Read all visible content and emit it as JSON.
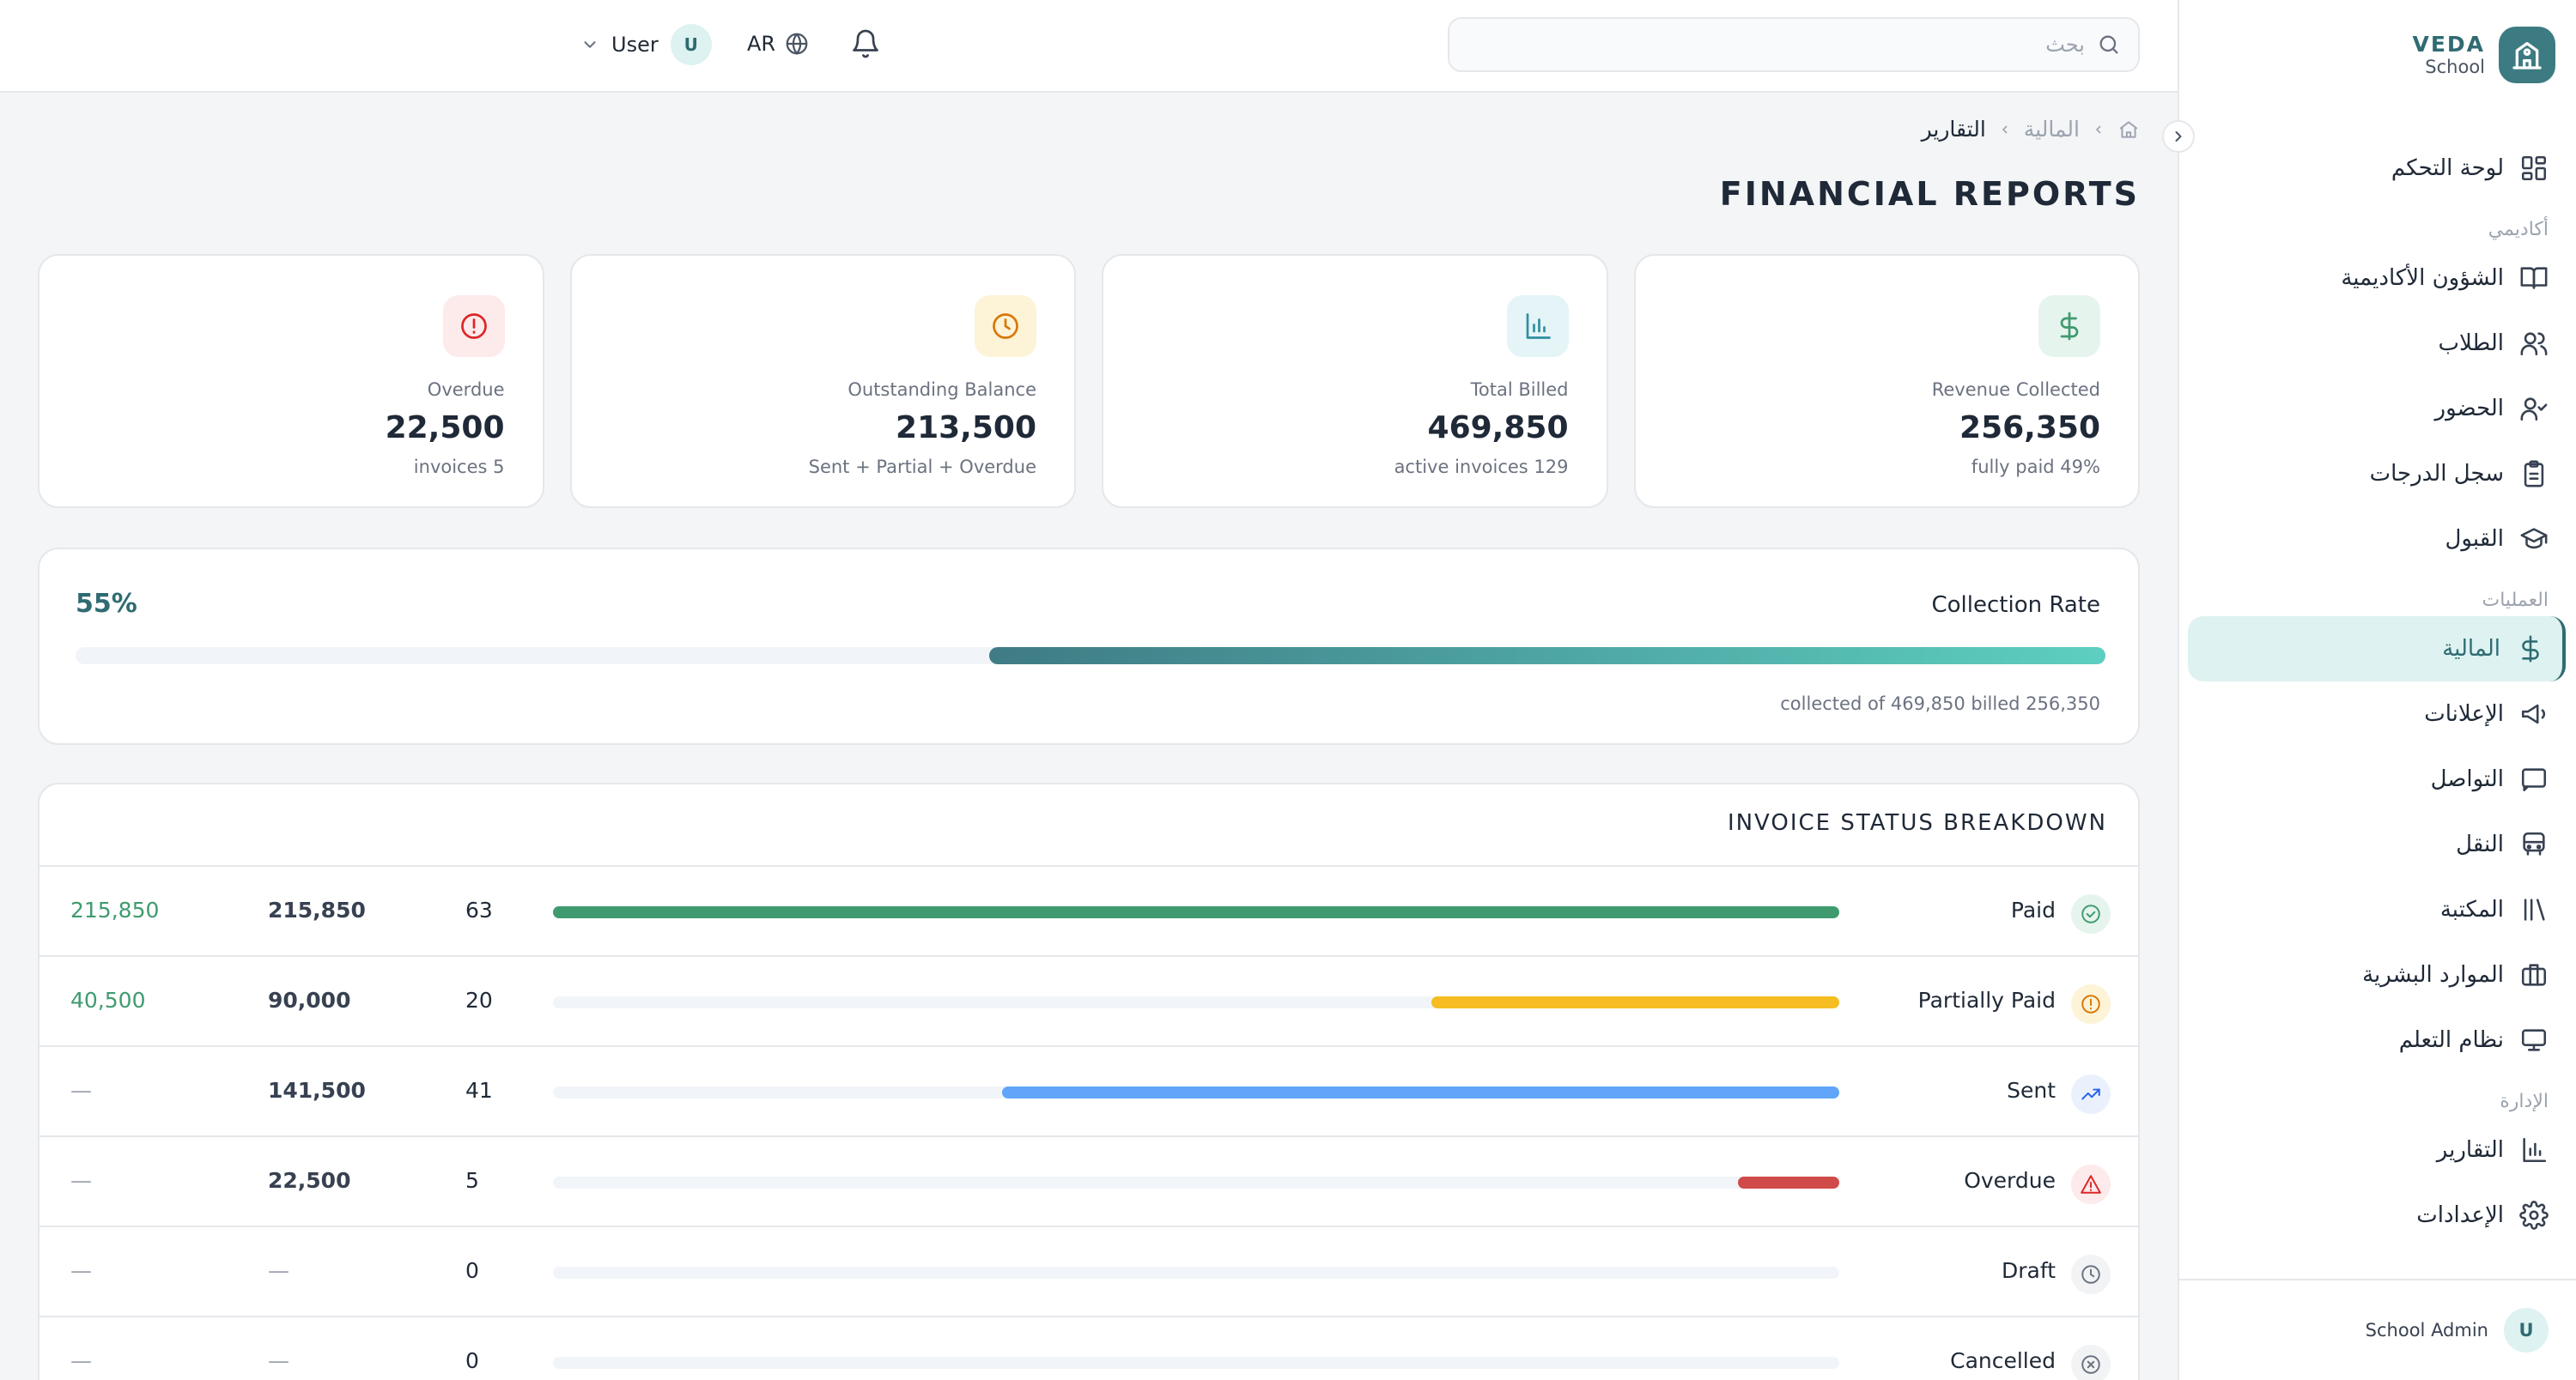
{
  "brand": {
    "name": "VEDA",
    "sub": "School"
  },
  "topbar": {
    "search_placeholder": "بحث",
    "lang": "AR",
    "user_name": "User",
    "user_initial": "U"
  },
  "sidebar": {
    "dashboard": "لوحة التحكم",
    "sections": {
      "academic": "أكاديمي",
      "operations": "العمليات",
      "admin": "الإدارة"
    },
    "academic_items": [
      {
        "label": "الشؤون الأكاديمية",
        "icon": "book-icon"
      },
      {
        "label": "الطلاب",
        "icon": "users-icon"
      },
      {
        "label": "الحضور",
        "icon": "user-check-icon"
      },
      {
        "label": "سجل الدرجات",
        "icon": "clipboard-icon"
      },
      {
        "label": "القبول",
        "icon": "graduation-cap-icon"
      }
    ],
    "operations_items": [
      {
        "label": "المالية",
        "icon": "dollar-icon",
        "active": true
      },
      {
        "label": "الإعلانات",
        "icon": "megaphone-icon"
      },
      {
        "label": "التواصل",
        "icon": "message-icon"
      },
      {
        "label": "النقل",
        "icon": "bus-icon"
      },
      {
        "label": "المكتبة",
        "icon": "library-icon"
      },
      {
        "label": "الموارد البشرية",
        "icon": "briefcase-icon"
      },
      {
        "label": "نظام التعلم",
        "icon": "monitor-icon"
      }
    ],
    "admin_items": [
      {
        "label": "التقارير",
        "icon": "bar-chart-icon"
      },
      {
        "label": "الإعدادات",
        "icon": "gear-icon"
      }
    ],
    "footer": {
      "role": "School Admin",
      "initial": "U"
    }
  },
  "breadcrumb": {
    "parent": "المالية",
    "current": "التقارير"
  },
  "page_title": "FINANCIAL REPORTS",
  "stat_cards": [
    {
      "label": "Revenue Collected",
      "value": "256,350",
      "sub": "fully paid 49%",
      "icon": "dollar-icon",
      "color": "#3f9b6f",
      "bg": "#e6f4ee"
    },
    {
      "label": "Total Billed",
      "value": "469,850",
      "sub": "active invoices 129",
      "icon": "bar-chart-icon",
      "color": "#2f8fa0",
      "bg": "#e4f4f7"
    },
    {
      "label": "Outstanding Balance",
      "value": "213,500",
      "sub": "Sent + Partial + Overdue",
      "icon": "clock-icon",
      "color": "#d97706",
      "bg": "#fdf3d7"
    },
    {
      "label": "Overdue",
      "value": "22,500",
      "sub": "invoices 5",
      "icon": "alert-circle-icon",
      "color": "#dc2626",
      "bg": "#fdeaea"
    }
  ],
  "collection": {
    "title": "Collection Rate",
    "percent_label": "55%",
    "percent": 55,
    "summary": "collected of 469,850 billed 256,350"
  },
  "breakdown": {
    "title": "INVOICE STATUS BREAKDOWN",
    "rows": [
      {
        "status": "Paid",
        "count": "63",
        "billed": "215,850",
        "collected": "215,850",
        "fraction": 1.0,
        "color": "#3f9b6f",
        "icon": "check-circle-icon",
        "icon_color": "#3f9b6f",
        "icon_bg": "#e6f4ee"
      },
      {
        "status": "Partially Paid",
        "count": "20",
        "billed": "90,000",
        "collected": "40,500",
        "fraction": 0.317,
        "color": "#f5bd22",
        "icon": "alert-circle-icon",
        "icon_color": "#d97706",
        "icon_bg": "#fdf3d7"
      },
      {
        "status": "Sent",
        "count": "41",
        "billed": "141,500",
        "collected": "—",
        "fraction": 0.651,
        "color": "#60a5fa",
        "icon": "trending-up-icon",
        "icon_color": "#2563eb",
        "icon_bg": "#eaf1fd"
      },
      {
        "status": "Overdue",
        "count": "5",
        "billed": "22,500",
        "collected": "—",
        "fraction": 0.079,
        "color": "#d14a4a",
        "icon": "alert-triangle-icon",
        "icon_color": "#dc2626",
        "icon_bg": "#fdeaea"
      },
      {
        "status": "Draft",
        "count": "0",
        "billed": "—",
        "collected": "—",
        "fraction": 0,
        "color": "#9ca3af",
        "icon": "clock-icon",
        "icon_color": "#6b7280",
        "icon_bg": "#f1f3f5"
      },
      {
        "status": "Cancelled",
        "count": "0",
        "billed": "—",
        "collected": "—",
        "fraction": 0,
        "color": "#9ca3af",
        "icon": "x-circle-icon",
        "icon_color": "#6b7280",
        "icon_bg": "#f1f3f5"
      }
    ]
  }
}
